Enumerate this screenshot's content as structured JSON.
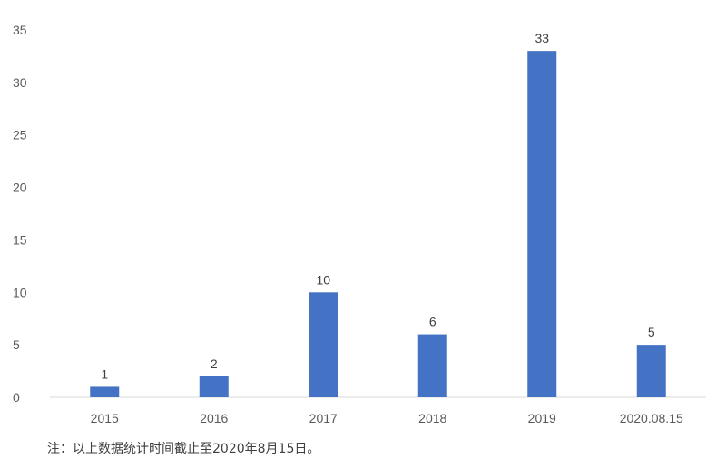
{
  "chart_data": {
    "type": "bar",
    "categories": [
      "2015",
      "2016",
      "2017",
      "2018",
      "2019",
      "2020.08.15"
    ],
    "values": [
      1,
      2,
      10,
      6,
      33,
      5
    ],
    "ylim": [
      0,
      35
    ],
    "yticks": [
      0,
      5,
      10,
      15,
      20,
      25,
      30,
      35
    ],
    "grid": false,
    "bar_color": "#4472C4"
  },
  "note": "注：以上数据统计时间截止至2020年8月15日。"
}
